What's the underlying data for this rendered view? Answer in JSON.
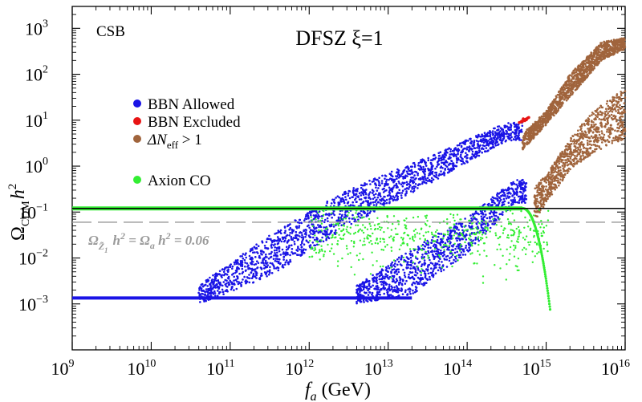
{
  "chart_data": {
    "type": "scatter",
    "title": "DFSZ ξ=1",
    "corner_label": "CSB",
    "xlabel": {
      "main": "f",
      "sub": "a",
      "unit": " (GeV)"
    },
    "ylabel": {
      "main": "Ω",
      "sub": "CDM",
      "tail": "h",
      "sup": "2"
    },
    "xscale": "log",
    "yscale": "log",
    "xlim": [
      1000000000.0,
      1e+16
    ],
    "ylim": [
      0.0001,
      3000
    ],
    "x_ticks": [
      {
        "base": "10",
        "exp": "9",
        "value": 9
      },
      {
        "base": "10",
        "exp": "10",
        "value": 10
      },
      {
        "base": "10",
        "exp": "11",
        "value": 11
      },
      {
        "base": "10",
        "exp": "12",
        "value": 12
      },
      {
        "base": "10",
        "exp": "13",
        "value": 13
      },
      {
        "base": "10",
        "exp": "14",
        "value": 14
      },
      {
        "base": "10",
        "exp": "15",
        "value": 15
      },
      {
        "base": "10",
        "exp": "16",
        "value": 16
      }
    ],
    "y_ticks": [
      {
        "base": "10",
        "exp": "−3",
        "value": -3
      },
      {
        "base": "10",
        "exp": "−2",
        "value": -2
      },
      {
        "base": "10",
        "exp": "−1",
        "value": -1
      },
      {
        "base": "10",
        "exp": "0",
        "value": 0
      },
      {
        "base": "10",
        "exp": "1",
        "value": 1
      },
      {
        "base": "10",
        "exp": "2",
        "value": 2
      },
      {
        "base": "10",
        "exp": "3",
        "value": 3
      }
    ],
    "legend": {
      "placement": "upper-left",
      "entries": [
        {
          "label": "BBN Allowed",
          "color": "#1a14e6"
        },
        {
          "label": "BBN Excluded",
          "color": "#e81414"
        },
        {
          "label": "ΔN",
          "sub": "eff",
          "tail": " > 1",
          "color": "#a0643c"
        },
        {
          "label": "Axion CO",
          "color": "#33ee33"
        }
      ]
    },
    "reference_lines": [
      {
        "name": "observed-relic-line",
        "y": 0.12,
        "style": "solid",
        "color": "#000000"
      },
      {
        "name": "relic-0.06-line",
        "y": 0.06,
        "style": "dashed",
        "color": "#999999",
        "label_parts": {
          "a": "Ω",
          "sub": "Z̃",
          "subsub": "1",
          "b": "h",
          "c": "2",
          "d": " = Ω",
          "e": "a",
          "f": " h",
          "g": "2",
          "h": " = 0.06"
        }
      }
    ],
    "series": [
      {
        "name": "BBN Allowed",
        "color": "#1a14e6",
        "bands": [
          {
            "name": "upper-band",
            "lo_pts": [
              [
                10.6,
                -3.0
              ],
              [
                11.5,
                -2.4
              ],
              [
                12.5,
                -1.3
              ],
              [
                13.5,
                -0.4
              ],
              [
                14.5,
                0.55
              ]
            ],
            "hi_pts": [
              [
                10.6,
                -2.6
              ],
              [
                11.5,
                -1.5
              ],
              [
                12.5,
                -0.5
              ],
              [
                13.5,
                0.2
              ],
              [
                14.5,
                0.95
              ]
            ],
            "x_range": [
              10.6,
              14.7
            ],
            "count": 1900
          },
          {
            "name": "lower-band",
            "lo_pts": [
              [
                12.6,
                -3.0
              ],
              [
                13.3,
                -2.8
              ],
              [
                14.0,
                -1.9
              ],
              [
                14.6,
                -0.8
              ]
            ],
            "hi_pts": [
              [
                12.6,
                -2.6
              ],
              [
                13.3,
                -1.8
              ],
              [
                14.0,
                -1.1
              ],
              [
                14.6,
                -0.3
              ]
            ],
            "x_range": [
              12.6,
              14.75
            ],
            "count": 1100
          }
        ],
        "floor_line": {
          "y_log": -2.87,
          "x_range": [
            9.0,
            13.3
          ]
        }
      },
      {
        "name": "BBN Excluded",
        "color": "#e81414",
        "points": [
          [
            14.72,
            1.0
          ],
          [
            14.74,
            1.02
          ],
          [
            14.7,
            0.97
          ],
          [
            14.76,
            1.04
          ],
          [
            14.73,
            0.99
          ],
          [
            14.68,
            0.96
          ],
          [
            14.75,
            1.01
          ],
          [
            14.71,
            1.03
          ],
          [
            14.77,
            1.05
          ],
          [
            14.69,
            0.98
          ],
          [
            14.66,
            0.95
          ],
          [
            14.78,
            1.06
          ]
        ]
      },
      {
        "name": "ΔN_eff > 1",
        "color": "#a0643c",
        "bands": [
          {
            "name": "upper-brown",
            "lo_pts": [
              [
                14.7,
                0.35
              ],
              [
                15.0,
                0.9
              ],
              [
                15.3,
                1.5
              ],
              [
                15.7,
                2.3
              ],
              [
                16.0,
                2.55
              ]
            ],
            "hi_pts": [
              [
                14.7,
                0.7
              ],
              [
                15.0,
                1.2
              ],
              [
                15.3,
                2.0
              ],
              [
                15.7,
                2.7
              ],
              [
                16.0,
                2.8
              ]
            ],
            "x_range": [
              14.7,
              16.0
            ],
            "count": 1300
          },
          {
            "name": "lower-brown",
            "lo_pts": [
              [
                14.85,
                -1.2
              ],
              [
                15.0,
                -0.8
              ],
              [
                15.3,
                -0.1
              ],
              [
                15.6,
                0.3
              ],
              [
                16.0,
                0.6
              ]
            ],
            "hi_pts": [
              [
                14.85,
                -0.4
              ],
              [
                15.0,
                -0.2
              ],
              [
                15.3,
                0.6
              ],
              [
                15.6,
                1.2
              ],
              [
                16.0,
                1.7
              ]
            ],
            "x_range": [
              14.85,
              16.0
            ],
            "count": 900
          }
        ]
      },
      {
        "name": "Axion CO",
        "color": "#33ee33",
        "plateau": {
          "y_log": -0.92,
          "x_range": [
            9.0,
            14.9
          ]
        },
        "scatter_region": {
          "x_range": [
            12.0,
            15.05
          ],
          "y_log_range": [
            -3.3,
            -0.9
          ],
          "count": 520
        }
      }
    ]
  }
}
